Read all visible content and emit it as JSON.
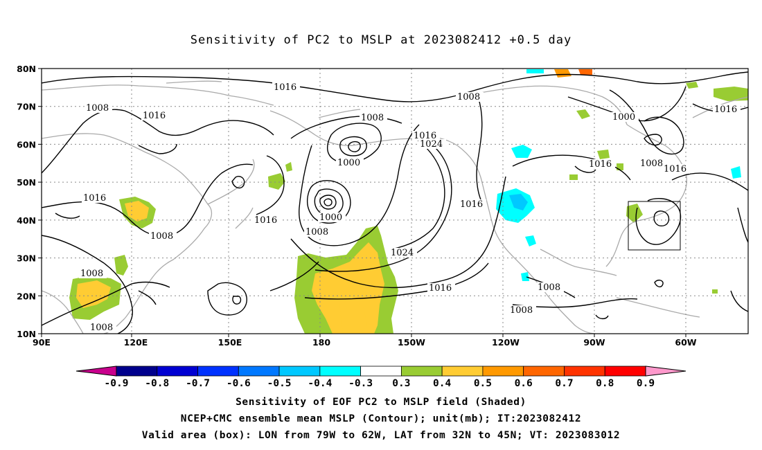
{
  "title": "Sensitivity of PC2 to MSLP at 2023082412 +0.5 day",
  "lat_labels": [
    "80N",
    "70N",
    "60N",
    "50N",
    "40N",
    "30N",
    "20N",
    "10N"
  ],
  "lon_labels": [
    "90E",
    "120E",
    "150E",
    "180",
    "150W",
    "120W",
    "90W",
    "60W"
  ],
  "colorbar": {
    "labels": [
      "-0.9",
      "-0.8",
      "-0.7",
      "-0.6",
      "-0.5",
      "-0.4",
      "-0.3",
      "0.3",
      "0.4",
      "0.5",
      "0.6",
      "0.7",
      "0.8",
      "0.9"
    ],
    "colors": [
      "#c8008c",
      "#00008c",
      "#0000d2",
      "#0032ff",
      "#0078ff",
      "#00c8ff",
      "#00ffff",
      "#ffffff",
      "#99cc33",
      "#ffcc33",
      "#ff9900",
      "#ff6600",
      "#ff3300",
      "#ff0000",
      "#ff99cc"
    ]
  },
  "contour_labels": [
    {
      "text": "1016"
    },
    {
      "text": "1008"
    },
    {
      "text": "1016"
    },
    {
      "text": "1008"
    },
    {
      "text": "1016"
    },
    {
      "text": "1016"
    },
    {
      "text": "1000"
    },
    {
      "text": "1008"
    },
    {
      "text": "1016"
    },
    {
      "text": "1024"
    },
    {
      "text": "1024"
    },
    {
      "text": "1016"
    },
    {
      "text": "1000"
    },
    {
      "text": "1008"
    },
    {
      "text": "1016"
    },
    {
      "text": "1008"
    },
    {
      "text": "1016"
    },
    {
      "text": "1008"
    },
    {
      "text": "1008"
    },
    {
      "text": "1000"
    },
    {
      "text": "1008"
    },
    {
      "text": "1016"
    },
    {
      "text": "1016"
    },
    {
      "text": "1008"
    },
    {
      "text": "1016"
    },
    {
      "text": "1008"
    }
  ],
  "captions": [
    "Sensitivity of EOF PC2 to MSLP field (Shaded)",
    "NCEP+CMC ensemble mean MSLP (Contour); unit(mb); IT:2023082412",
    "Valid area (box): LON from 79W to 62W, LAT from 32N to 45N; VT: 2023083012"
  ]
}
